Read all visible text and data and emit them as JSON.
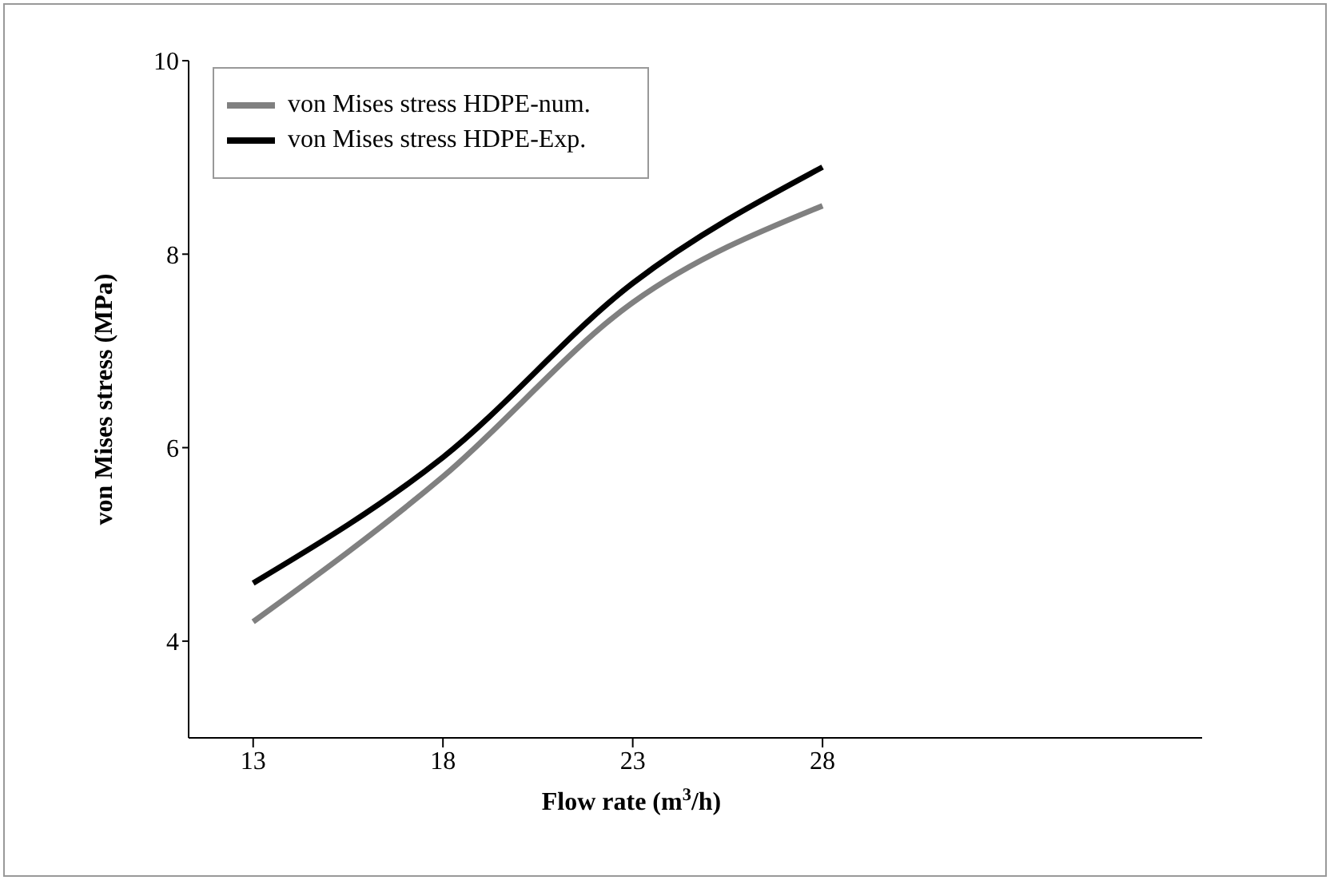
{
  "chart_data": {
    "type": "line",
    "xlabel": "Flow rate (m$^{3}$/h)",
    "ylabel": "von Mises stress (MPa)",
    "x": [
      13,
      18,
      23,
      28
    ],
    "series": [
      {
        "name": "von Mises stress HDPE-num.",
        "color": "#808080",
        "values": [
          4.2,
          5.7,
          7.5,
          8.5
        ]
      },
      {
        "name": "von Mises stress HDPE-Exp.",
        "color": "#000000",
        "values": [
          4.6,
          5.9,
          7.7,
          8.9
        ]
      }
    ],
    "xlim": [
      11.3,
      38
    ],
    "xticks": [
      13,
      18,
      23,
      28
    ],
    "ylim": [
      3,
      10
    ],
    "yticks": [
      4,
      6,
      8,
      10
    ],
    "grid": false,
    "legend": "top left",
    "marker": "none",
    "line_style": "solid"
  }
}
